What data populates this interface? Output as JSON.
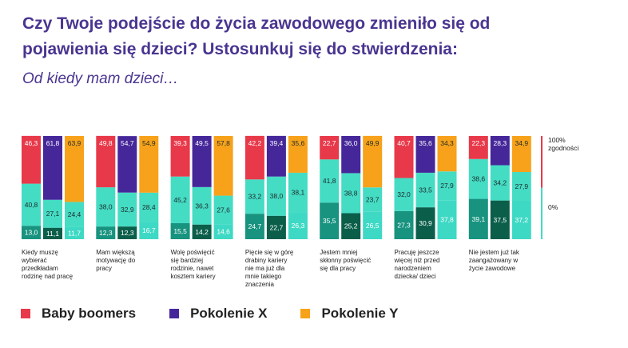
{
  "header": {
    "title_line1": "Czy Twoje podejście do życia zawodowego zmieniło się od",
    "title_line2": "pojawienia się dzieci? Ustosunkuj się do stwierdzenia:",
    "subtitle": "Od kiedy mam dzieci…"
  },
  "chart_data": {
    "type": "bar",
    "stacked": true,
    "unit": "%",
    "scale_labels": {
      "top": "100%",
      "top2": "zgodności",
      "bottom": "0%"
    },
    "generations": [
      {
        "name": "Baby boomers",
        "color": "#e8394a"
      },
      {
        "name": "Pokolenie X",
        "color": "#45279a"
      },
      {
        "name": "Pokolenie Y",
        "color": "#f7a21a"
      }
    ],
    "segment_colors": {
      "dark": [
        "#17937f",
        "#0a5e4a",
        "#3ed9c4"
      ],
      "light": "#45dcc4"
    },
    "categories": [
      {
        "label": [
          "Kiedy muszę",
          "wybierać",
          "przedkładam",
          "rodzinę nad pracę"
        ],
        "bars": [
          {
            "values": [
              13.0,
              40.8,
              46.3
            ],
            "labels": [
              "13,0",
              "40,8",
              "46,3"
            ]
          },
          {
            "values": [
              11.1,
              27.1,
              61.8
            ],
            "labels": [
              "11,1",
              "27,1",
              "61,8"
            ]
          },
          {
            "values": [
              11.7,
              24.4,
              63.9
            ],
            "labels": [
              "11,7",
              "24,4",
              "63,9"
            ]
          }
        ]
      },
      {
        "label": [
          "Mam większą",
          "motywację do",
          "pracy"
        ],
        "bars": [
          {
            "values": [
              12.3,
              38.0,
              49.8
            ],
            "labels": [
              "12,3",
              "38,0",
              "49,8"
            ]
          },
          {
            "values": [
              12.3,
              32.9,
              54.7
            ],
            "labels": [
              "12,3",
              "32,9",
              "54,7"
            ]
          },
          {
            "values": [
              16.7,
              28.4,
              54.9
            ],
            "labels": [
              "16,7",
              "28,4",
              "54,9"
            ]
          }
        ]
      },
      {
        "label": [
          "Wolę poświęcić",
          "się bardziej",
          "rodzinie, nawet",
          "kosztem kariery"
        ],
        "bars": [
          {
            "values": [
              15.5,
              45.2,
              39.3
            ],
            "labels": [
              "15,5",
              "45,2",
              "39,3"
            ]
          },
          {
            "values": [
              14.2,
              36.3,
              49.5
            ],
            "labels": [
              "14,2",
              "36,3",
              "49,5"
            ]
          },
          {
            "values": [
              14.6,
              27.6,
              57.8
            ],
            "labels": [
              "14,6",
              "27,6",
              "57,8"
            ]
          }
        ]
      },
      {
        "label": [
          "Pięcie się w górę",
          "drabiny kariery",
          "nie ma już dla",
          "mnie takiego",
          "znaczenia"
        ],
        "bars": [
          {
            "values": [
              24.7,
              33.2,
              42.2
            ],
            "labels": [
              "24,7",
              "33,2",
              "42,2"
            ]
          },
          {
            "values": [
              22.7,
              38.0,
              39.4
            ],
            "labels": [
              "22,7",
              "38,0",
              "39,4"
            ]
          },
          {
            "values": [
              26.3,
              38.1,
              35.6
            ],
            "labels": [
              "26,3",
              "38,1",
              "35,6"
            ]
          }
        ]
      },
      {
        "label": [
          "Jestem mniej",
          "skłonny poświęcić",
          "się dla pracy"
        ],
        "bars": [
          {
            "values": [
              35.5,
              41.8,
              22.7
            ],
            "labels": [
              "35,5",
              "41,8",
              "22,7"
            ]
          },
          {
            "values": [
              25.2,
              38.8,
              36.0
            ],
            "labels": [
              "25,2",
              "38,8",
              "36,0"
            ]
          },
          {
            "values": [
              26.5,
              23.7,
              49.9
            ],
            "labels": [
              "26,5",
              "23,7",
              "49,9"
            ]
          }
        ]
      },
      {
        "label": [
          "Pracuję jeszcze",
          "więcej niż przed",
          "narodzeniem",
          "dziecka/ dzieci"
        ],
        "bars": [
          {
            "values": [
              27.3,
              32.0,
              40.7
            ],
            "labels": [
              "27,3",
              "32,0",
              "40,7"
            ]
          },
          {
            "values": [
              30.9,
              33.5,
              35.6
            ],
            "labels": [
              "30,9",
              "33,5",
              "35,6"
            ]
          },
          {
            "values": [
              37.8,
              27.9,
              34.3
            ],
            "labels": [
              "37,8",
              "27,9",
              "34,3"
            ]
          }
        ]
      },
      {
        "label": [
          "Nie jestem już tak",
          "zaangażowany w",
          "życie zawodowe"
        ],
        "bars": [
          {
            "values": [
              39.1,
              38.6,
              22.3
            ],
            "labels": [
              "39,1",
              "38,6",
              "22,3"
            ]
          },
          {
            "values": [
              37.5,
              34.2,
              28.3
            ],
            "labels": [
              "37,5",
              "34,2",
              "28,3"
            ]
          },
          {
            "values": [
              37.2,
              27.9,
              34.9
            ],
            "labels": [
              "37,2",
              "27,9",
              "34,9"
            ]
          }
        ]
      }
    ]
  }
}
